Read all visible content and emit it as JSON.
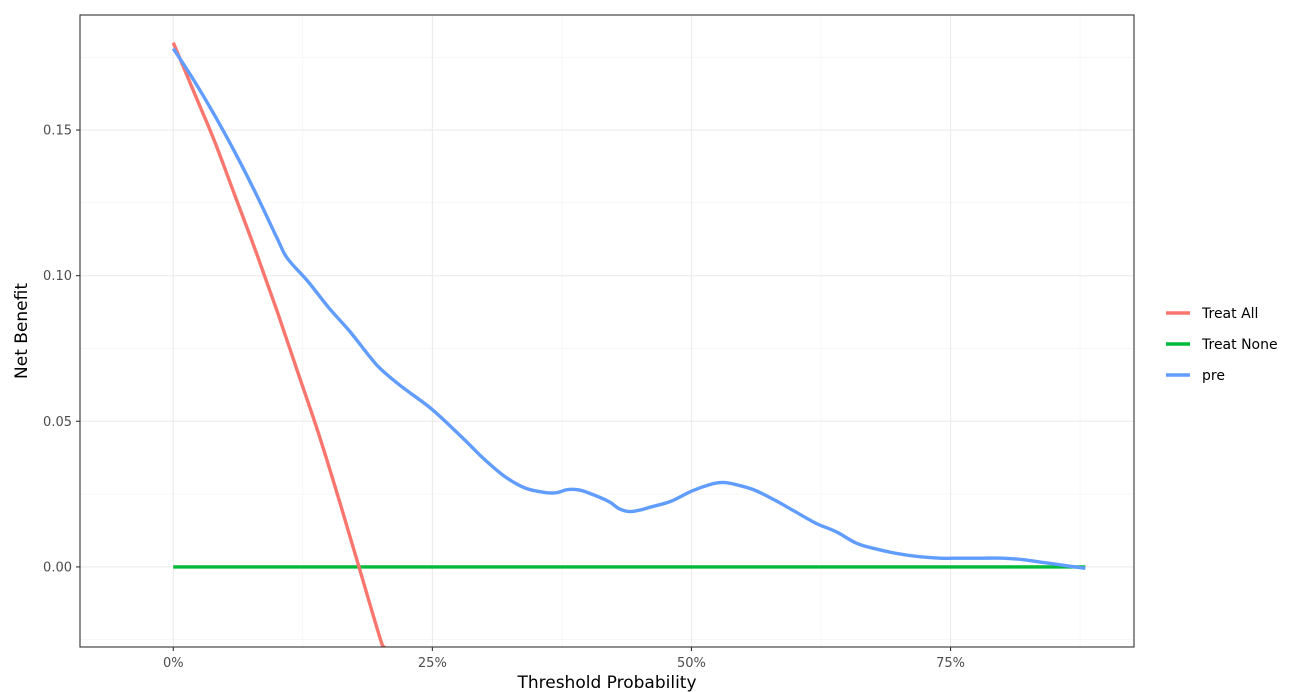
{
  "chart_data": {
    "type": "line",
    "title": "",
    "xlabel": "Threshold Probability",
    "ylabel": "Net Benefit",
    "xlim": [
      -0.09,
      0.927
    ],
    "ylim": [
      -0.0275,
      0.1895
    ],
    "x_ticks": [
      {
        "value": 0.0,
        "label": "0%"
      },
      {
        "value": 0.25,
        "label": "25%"
      },
      {
        "value": 0.5,
        "label": "50%"
      },
      {
        "value": 0.75,
        "label": "75%"
      }
    ],
    "y_ticks": [
      {
        "value": 0.0,
        "label": "0.00"
      },
      {
        "value": 0.05,
        "label": "0.05"
      },
      {
        "value": 0.1,
        "label": "0.10"
      },
      {
        "value": 0.15,
        "label": "0.15"
      }
    ],
    "grid": true,
    "legend_position": "right",
    "series": [
      {
        "name": "Treat All",
        "color": "#F8766D",
        "x": [
          0.0,
          0.02,
          0.04,
          0.06,
          0.08,
          0.1,
          0.12,
          0.14,
          0.16,
          0.18,
          0.2,
          0.2036
        ],
        "y": [
          0.18,
          0.163,
          0.146,
          0.127,
          0.108,
          0.088,
          0.067,
          0.046,
          0.023,
          -0.001,
          -0.025,
          -0.0275
        ]
      },
      {
        "name": "Treat None",
        "color": "#00BA38",
        "x": [
          0.0,
          0.88
        ],
        "y": [
          0.0,
          0.0
        ]
      },
      {
        "name": "pre",
        "color": "#619CFF",
        "x": [
          0.0,
          0.02,
          0.04,
          0.06,
          0.08,
          0.1,
          0.11,
          0.13,
          0.15,
          0.17,
          0.19,
          0.2,
          0.22,
          0.25,
          0.28,
          0.3,
          0.32,
          0.34,
          0.36,
          0.37,
          0.38,
          0.39,
          0.4,
          0.42,
          0.43,
          0.44,
          0.45,
          0.46,
          0.48,
          0.5,
          0.52,
          0.53,
          0.54,
          0.56,
          0.58,
          0.6,
          0.62,
          0.64,
          0.66,
          0.68,
          0.7,
          0.72,
          0.74,
          0.76,
          0.78,
          0.8,
          0.82,
          0.84,
          0.86,
          0.88
        ],
        "y": [
          0.178,
          0.167,
          0.155,
          0.142,
          0.128,
          0.113,
          0.106,
          0.098,
          0.089,
          0.081,
          0.072,
          0.068,
          0.062,
          0.054,
          0.044,
          0.037,
          0.031,
          0.027,
          0.0255,
          0.0255,
          0.0265,
          0.0265,
          0.0255,
          0.0225,
          0.02,
          0.019,
          0.0195,
          0.0205,
          0.0225,
          0.026,
          0.0285,
          0.029,
          0.0285,
          0.0265,
          0.023,
          0.019,
          0.015,
          0.012,
          0.008,
          0.006,
          0.0045,
          0.0035,
          0.003,
          0.003,
          0.003,
          0.003,
          0.0025,
          0.0015,
          0.0005,
          -0.0005
        ]
      }
    ]
  }
}
